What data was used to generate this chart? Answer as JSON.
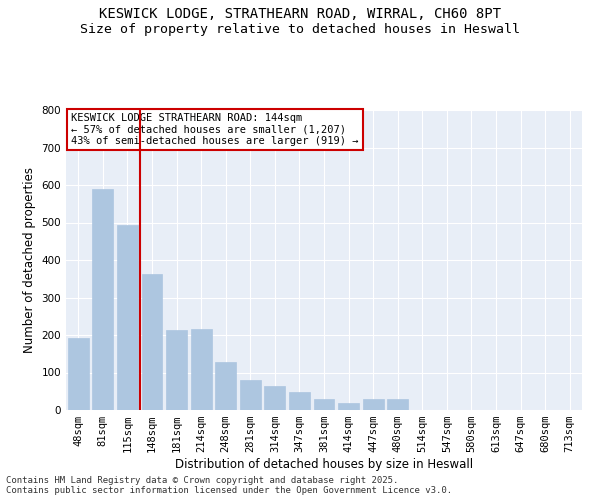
{
  "title_line1": "KESWICK LODGE, STRATHEARN ROAD, WIRRAL, CH60 8PT",
  "title_line2": "Size of property relative to detached houses in Heswall",
  "xlabel": "Distribution of detached houses by size in Heswall",
  "ylabel": "Number of detached properties",
  "categories": [
    "48sqm",
    "81sqm",
    "115sqm",
    "148sqm",
    "181sqm",
    "214sqm",
    "248sqm",
    "281sqm",
    "314sqm",
    "347sqm",
    "381sqm",
    "414sqm",
    "447sqm",
    "480sqm",
    "514sqm",
    "547sqm",
    "580sqm",
    "613sqm",
    "647sqm",
    "680sqm",
    "713sqm"
  ],
  "values": [
    193,
    590,
    493,
    362,
    213,
    215,
    127,
    80,
    63,
    47,
    30,
    20,
    30,
    30,
    0,
    0,
    0,
    0,
    0,
    0,
    0
  ],
  "bar_color": "#adc6e0",
  "bar_edge_color": "#adc6e0",
  "marker_color": "#cc0000",
  "annotation_text": "KESWICK LODGE STRATHEARN ROAD: 144sqm\n← 57% of detached houses are smaller (1,207)\n43% of semi-detached houses are larger (919) →",
  "annotation_box_color": "#ffffff",
  "annotation_box_edge": "#cc0000",
  "ylim": [
    0,
    800
  ],
  "yticks": [
    0,
    100,
    200,
    300,
    400,
    500,
    600,
    700,
    800
  ],
  "background_color": "#e8eef7",
  "footer_line1": "Contains HM Land Registry data © Crown copyright and database right 2025.",
  "footer_line2": "Contains public sector information licensed under the Open Government Licence v3.0.",
  "title_fontsize": 10,
  "subtitle_fontsize": 9.5,
  "axis_label_fontsize": 8.5,
  "tick_fontsize": 7.5,
  "annotation_fontsize": 7.5,
  "footer_fontsize": 6.5
}
